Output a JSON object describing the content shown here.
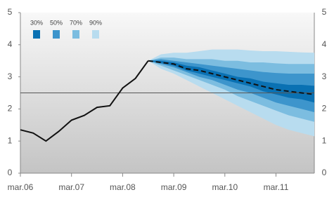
{
  "chart_data": {
    "type": "fan",
    "xlim": [
      0,
      23
    ],
    "xticks": [
      {
        "value": 0,
        "label": "mar.06"
      },
      {
        "value": 4,
        "label": "mar.07"
      },
      {
        "value": 8,
        "label": "mar.08"
      },
      {
        "value": 12,
        "label": "mar.09"
      },
      {
        "value": 16,
        "label": "mar.10"
      },
      {
        "value": 20,
        "label": "mar.11"
      }
    ],
    "ylim": [
      0,
      5
    ],
    "yticks": [
      0,
      1,
      2,
      3,
      4,
      5
    ],
    "reference_line": 2.5,
    "history": {
      "color": "#111111",
      "x": [
        0,
        1,
        2,
        3,
        4,
        5,
        6,
        7,
        8,
        9,
        10
      ],
      "values": [
        1.35,
        1.25,
        1.0,
        1.3,
        1.65,
        1.8,
        2.05,
        2.1,
        2.65,
        2.95,
        3.5
      ]
    },
    "projection": {
      "color": "#111111",
      "x": [
        10,
        11,
        12,
        13,
        14,
        15,
        16,
        17,
        18,
        19,
        20,
        21,
        22,
        23
      ],
      "values": [
        3.5,
        3.45,
        3.4,
        3.25,
        3.2,
        3.1,
        3.0,
        2.9,
        2.8,
        2.7,
        2.6,
        2.55,
        2.5,
        2.45
      ]
    },
    "fan": {
      "x": [
        10,
        11,
        12,
        13,
        14,
        15,
        16,
        17,
        18,
        19,
        20,
        21,
        22,
        23
      ],
      "bands": [
        {
          "name": "90%",
          "color": "#b8dcef",
          "upper": [
            3.5,
            3.7,
            3.75,
            3.75,
            3.8,
            3.85,
            3.85,
            3.85,
            3.82,
            3.8,
            3.8,
            3.78,
            3.76,
            3.75
          ],
          "lower": [
            3.5,
            3.25,
            3.1,
            2.9,
            2.7,
            2.5,
            2.3,
            2.1,
            1.9,
            1.7,
            1.5,
            1.35,
            1.25,
            1.15
          ]
        },
        {
          "name": "70%",
          "color": "#7cbde0",
          "upper": [
            3.5,
            3.6,
            3.6,
            3.55,
            3.55,
            3.55,
            3.5,
            3.5,
            3.45,
            3.45,
            3.42,
            3.4,
            3.4,
            3.4
          ],
          "lower": [
            3.5,
            3.35,
            3.2,
            3.05,
            2.9,
            2.75,
            2.6,
            2.4,
            2.25,
            2.1,
            1.95,
            1.8,
            1.7,
            1.6
          ]
        },
        {
          "name": "50%",
          "color": "#3d95cc",
          "upper": [
            3.5,
            3.55,
            3.5,
            3.45,
            3.4,
            3.35,
            3.3,
            3.25,
            3.2,
            3.15,
            3.12,
            3.1,
            3.1,
            3.1
          ],
          "lower": [
            3.5,
            3.4,
            3.3,
            3.15,
            3.0,
            2.9,
            2.75,
            2.6,
            2.5,
            2.35,
            2.2,
            2.1,
            2.0,
            1.9
          ]
        },
        {
          "name": "30%",
          "color": "#0a71b3",
          "upper": [
            3.5,
            3.5,
            3.45,
            3.35,
            3.3,
            3.2,
            3.1,
            3.0,
            2.95,
            2.85,
            2.8,
            2.75,
            2.75,
            2.72
          ],
          "lower": [
            3.5,
            3.43,
            3.35,
            3.2,
            3.1,
            3.0,
            2.9,
            2.8,
            2.7,
            2.55,
            2.45,
            2.35,
            2.3,
            2.2
          ]
        }
      ]
    }
  }
}
